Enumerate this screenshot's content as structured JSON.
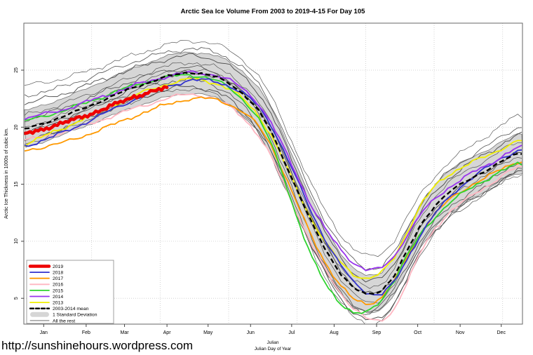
{
  "page": {
    "url_watermark": "http://sunshinehours.wordpress.com"
  },
  "chart_data": {
    "type": "line",
    "title": "Arctic Sea Ice Volume From 2003 to 2019-4-15  For Day 105",
    "ylabel": "Arctic Ice Thickness in 1000s of cubic km.",
    "xlabel_line1": "Julian",
    "xlabel_line2": "Julian Day of Year",
    "xlim_days": [
      1,
      365
    ],
    "ylim": [
      2.7,
      29.1
    ],
    "y_ticks": [
      5,
      10,
      15,
      20,
      25
    ],
    "month_ticks": {
      "days": [
        15,
        46,
        74,
        105,
        135,
        166,
        196,
        227,
        258,
        288,
        319,
        349
      ],
      "labels": [
        "Jan",
        "Feb",
        "Mar",
        "Apr",
        "May",
        "Jun",
        "Jul",
        "Aug",
        "Sep",
        "Oct",
        "Nov",
        "Dec"
      ]
    },
    "grid": {
      "vertical_days": [
        50,
        100,
        150,
        200,
        250,
        300,
        350
      ],
      "horizontal_values": [
        5,
        10,
        15,
        20,
        25
      ],
      "style": "dotted"
    },
    "mean_days": [
      1,
      11,
      21,
      31,
      41,
      51,
      61,
      71,
      81,
      91,
      101,
      111,
      121,
      131,
      141,
      151,
      161,
      171,
      181,
      191,
      201,
      211,
      221,
      231,
      241,
      251,
      261,
      271,
      281,
      291,
      301,
      311,
      321,
      331,
      341,
      351,
      361
    ],
    "mean_2003_2014": [
      19.8,
      20.2,
      20.6,
      21.0,
      21.5,
      22.0,
      22.5,
      23.0,
      23.5,
      23.9,
      24.3,
      24.6,
      24.8,
      24.7,
      24.4,
      23.8,
      22.9,
      21.6,
      19.6,
      17.0,
      14.2,
      11.5,
      9.2,
      7.3,
      5.9,
      5.3,
      5.6,
      7.0,
      9.3,
      11.6,
      13.2,
      14.3,
      15.1,
      15.8,
      16.4,
      17.1,
      17.7
    ],
    "std_dev": [
      1.6,
      1.6,
      1.6,
      1.6,
      1.6,
      1.65,
      1.65,
      1.7,
      1.7,
      1.75,
      1.8,
      1.8,
      1.8,
      1.8,
      1.85,
      1.9,
      1.95,
      2.0,
      2.1,
      2.1,
      2.1,
      2.0,
      1.9,
      1.8,
      1.7,
      1.6,
      1.6,
      1.7,
      1.8,
      1.9,
      1.9,
      1.9,
      1.85,
      1.8,
      1.75,
      1.7,
      1.7
    ],
    "offset_days": [
      1,
      31,
      61,
      91,
      121,
      151,
      181,
      211,
      241,
      271,
      301,
      331,
      361
    ],
    "series": [
      {
        "name": "2019",
        "color": "#ee0000",
        "width": 4.5,
        "partial": true,
        "days": [
          1,
          31,
          61,
          91,
          105
        ],
        "offsets_from_mean": [
          -0.4,
          -0.6,
          -0.8,
          -0.85,
          -1.0
        ]
      },
      {
        "name": "2018",
        "color": "#3333cc",
        "width": 1.8,
        "offsets_from_mean": [
          -1.5,
          -1.4,
          -1.2,
          -1.0,
          -0.7,
          -0.2,
          0.6,
          0.9,
          0.5,
          -0.6,
          -0.7,
          0.1,
          0.3
        ]
      },
      {
        "name": "2017",
        "color": "#ff9900",
        "width": 1.8,
        "offsets_from_mean": [
          -1.9,
          -2.3,
          -2.5,
          -2.5,
          -2.3,
          -1.8,
          -1.2,
          -1.2,
          -1.0,
          -0.5,
          -0.7,
          -0.6,
          -0.7
        ]
      },
      {
        "name": "2016",
        "color": "#ffb6c1",
        "width": 1.8,
        "offsets_from_mean": [
          -1.0,
          -1.4,
          -1.7,
          -1.9,
          -1.9,
          -2.0,
          -2.2,
          -1.9,
          -1.8,
          -2.9,
          -2.0,
          -1.5,
          -1.2
        ]
      },
      {
        "name": "2015",
        "color": "#2fd42f",
        "width": 1.8,
        "offsets_from_mean": [
          0.7,
          0.5,
          0.3,
          0.1,
          -0.2,
          -0.4,
          -1.0,
          -3.0,
          -2.2,
          -0.4,
          -1.0,
          -0.8,
          -0.9
        ]
      },
      {
        "name": "2014",
        "color": "#9933ee",
        "width": 1.8,
        "offsets_from_mean": [
          0.9,
          0.6,
          0.3,
          0.1,
          0.0,
          0.3,
          0.8,
          1.5,
          2.2,
          1.7,
          0.6,
          0.4,
          0.5
        ]
      },
      {
        "name": "2013",
        "color": "#f0f000",
        "width": 1.8,
        "offsets_from_mean": [
          -1.3,
          -1.0,
          -0.8,
          -0.7,
          -0.6,
          -0.5,
          -0.3,
          0.3,
          1.2,
          1.6,
          1.7,
          1.3,
          1.1
        ]
      }
    ],
    "mean_series": {
      "name": "2003-2014 mean",
      "color": "#000000",
      "dash": [
        7,
        4
      ],
      "width": 2.4
    },
    "band_series": {
      "name": "1 Standard Deviation",
      "fill": "#d6d6d6",
      "edge": "#787878"
    },
    "rest_series": {
      "name": "All the rest",
      "color": "#4f4f4f",
      "width": 0.75,
      "offsets_from_mean": [
        [
          3.8,
          3.3,
          3.0,
          2.8,
          2.8,
          2.9,
          3.1,
          3.3,
          3.4,
          3.1,
          2.6,
          2.9,
          3.3
        ],
        [
          2.9,
          2.6,
          2.4,
          2.2,
          2.1,
          2.2,
          2.4,
          2.5,
          2.4,
          2.0,
          1.8,
          2.0,
          2.3
        ],
        [
          2.2,
          2.0,
          1.8,
          1.6,
          1.5,
          1.5,
          1.6,
          1.5,
          1.3,
          1.0,
          1.2,
          1.4,
          1.6
        ],
        [
          1.2,
          1.1,
          1.0,
          0.9,
          0.9,
          0.8,
          0.7,
          0.5,
          0.6,
          0.6,
          0.8,
          0.9,
          1.0
        ],
        [
          0.8,
          0.7,
          0.7,
          0.6,
          0.5,
          0.2,
          -0.5,
          -1.3,
          -1.5,
          -1.2,
          -1.4,
          -1.1,
          -0.8
        ],
        [
          -0.4,
          -0.3,
          -0.2,
          -0.1,
          0.0,
          0.1,
          0.3,
          0.4,
          0.2,
          -0.2,
          -0.3,
          -0.1,
          0.0
        ],
        [
          0.1,
          0.2,
          0.2,
          0.3,
          0.3,
          0.2,
          0.0,
          -0.3,
          -0.6,
          -0.8,
          -0.6,
          -0.4,
          -0.3
        ],
        [
          -0.3,
          -0.2,
          -0.3,
          -0.4,
          -0.6,
          -0.9,
          -1.5,
          -1.9,
          -1.7,
          -1.6,
          -1.8,
          -1.6,
          -1.4
        ],
        [
          -1.1,
          -1.0,
          -1.0,
          -1.1,
          -1.2,
          -1.4,
          -1.8,
          -2.1,
          -2.2,
          -2.4,
          -2.2,
          -1.9,
          -1.6
        ],
        [
          -1.3,
          -1.2,
          -1.1,
          -1.2,
          -1.4,
          -1.7,
          -2.1,
          -2.4,
          -2.6,
          -2.6,
          -2.4,
          -2.1,
          -1.8
        ]
      ]
    },
    "legend": {
      "position": "bottom-left",
      "entries": [
        {
          "label": "2019",
          "color": "#ee0000",
          "swatch": "thick-line"
        },
        {
          "label": "2018",
          "color": "#3333cc",
          "swatch": "line"
        },
        {
          "label": "2017",
          "color": "#ff9900",
          "swatch": "line"
        },
        {
          "label": "2016",
          "color": "#ffb6c1",
          "swatch": "line"
        },
        {
          "label": "2015",
          "color": "#2fd42f",
          "swatch": "line"
        },
        {
          "label": "2014",
          "color": "#9933ee",
          "swatch": "line"
        },
        {
          "label": "2013",
          "color": "#f0f000",
          "swatch": "line"
        },
        {
          "label": "2003-2014 mean",
          "color": "#000000",
          "swatch": "dashed"
        },
        {
          "label": "1 Standard Deviation",
          "color": "#d6d6d6",
          "swatch": "band"
        },
        {
          "label": "All the rest",
          "color": "#555555",
          "swatch": "thin-line"
        }
      ]
    }
  }
}
